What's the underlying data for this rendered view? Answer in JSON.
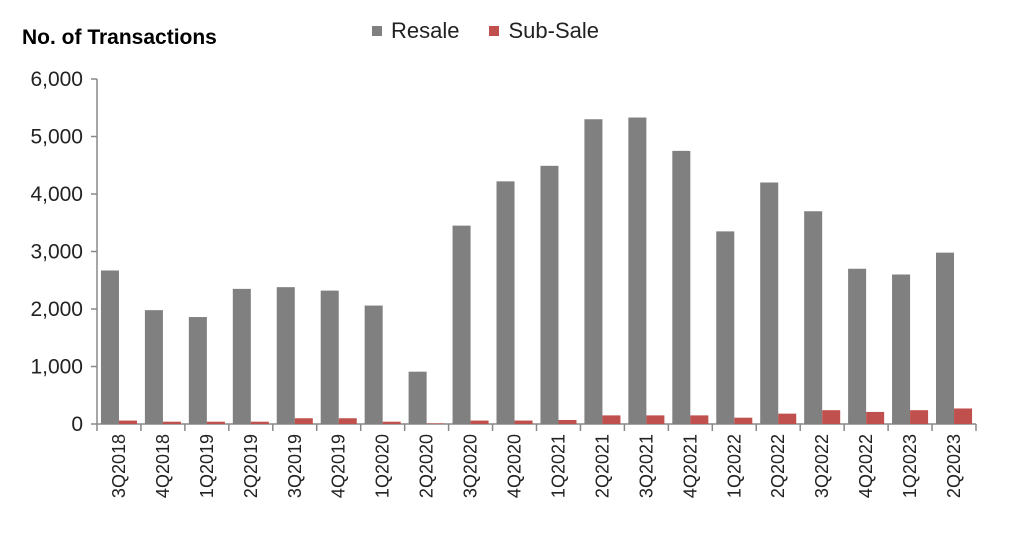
{
  "chart_data": {
    "type": "bar",
    "ylabel": "No. of Transactions",
    "ylim": [
      0,
      6000
    ],
    "yticks": [
      "0",
      "1,000",
      "2,000",
      "3,000",
      "4,000",
      "5,000",
      "6,000"
    ],
    "grid": false,
    "legend_position": "top",
    "categories": [
      "3Q2018",
      "4Q2018",
      "1Q2019",
      "2Q2019",
      "3Q2019",
      "4Q2019",
      "1Q2020",
      "2Q2020",
      "3Q2020",
      "4Q2020",
      "1Q2021",
      "2Q2021",
      "3Q2021",
      "4Q2021",
      "1Q2022",
      "2Q2022",
      "3Q2022",
      "4Q2022",
      "1Q2023",
      "2Q2023"
    ],
    "series": [
      {
        "name": "Resale",
        "color": "#808080",
        "values": [
          2670,
          1980,
          1860,
          2350,
          2380,
          2320,
          2060,
          910,
          3450,
          4220,
          4490,
          5300,
          5330,
          4750,
          3350,
          4200,
          3700,
          2700,
          2600,
          2980
        ]
      },
      {
        "name": "Sub-Sale",
        "color": "#c0504d",
        "values": [
          60,
          40,
          40,
          40,
          100,
          100,
          40,
          10,
          60,
          60,
          70,
          150,
          150,
          150,
          110,
          180,
          240,
          210,
          240,
          270
        ]
      }
    ]
  }
}
